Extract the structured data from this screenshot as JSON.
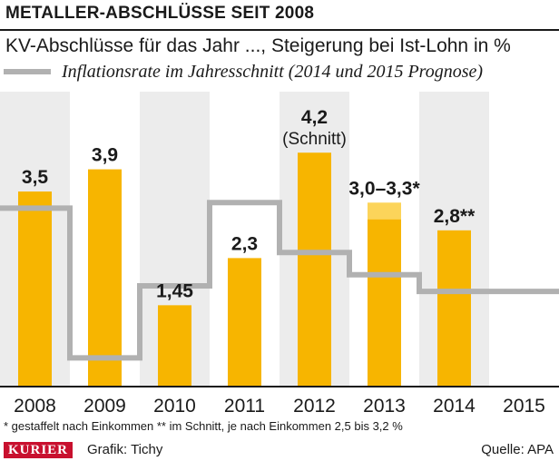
{
  "header": {
    "title": "METALLER-ABSCHLÜSSE SEIT 2008",
    "subtitle": "KV-Abschlüsse für das Jahr ..., Steigerung bei Ist-Lohn in %",
    "legend_line": "Inflationsrate im Jahresschnitt (2014 und 2015 Prognose)"
  },
  "chart_data": {
    "type": "bar",
    "categories": [
      "2008",
      "2009",
      "2010",
      "2011",
      "2012",
      "2013",
      "2014",
      "2015"
    ],
    "series": [
      {
        "values": [
          3.5,
          3.9,
          1.45,
          2.3,
          4.2,
          3.0,
          2.8,
          null
        ],
        "range_upper": [
          null,
          null,
          null,
          null,
          null,
          3.3,
          null,
          null
        ],
        "color": "#f7b500",
        "range_color": "#fcd45a"
      },
      {
        "name": "Inflationsrate im Jahresschnitt (2014 und 2015 Prognose)",
        "type": "step-line",
        "values": [
          3.2,
          0.5,
          1.8,
          3.3,
          2.4,
          2.0,
          1.7,
          1.7
        ],
        "color": "#b1b1b1"
      }
    ],
    "data_labels": [
      "3,5",
      "3,9",
      "1,45",
      "2,3",
      "4,2|(Schnitt)",
      "3,0–3,3*",
      "2,8**",
      ""
    ],
    "ylim": [
      0,
      5.3
    ],
    "grid": false,
    "legend_position": "top"
  },
  "footer": {
    "footnote": "*  gestaffelt nach Einkommen ** im Schnitt, je nach Einkommen 2,5 bis 3,2 %",
    "logo": "KURIER",
    "credit": "Grafik: Tichy",
    "source": "Quelle: APA"
  },
  "colors": {
    "column_band": "#ececec",
    "bar": "#f7b500",
    "bar_range": "#fcd45a",
    "inflation_line": "#b1b1b1"
  }
}
